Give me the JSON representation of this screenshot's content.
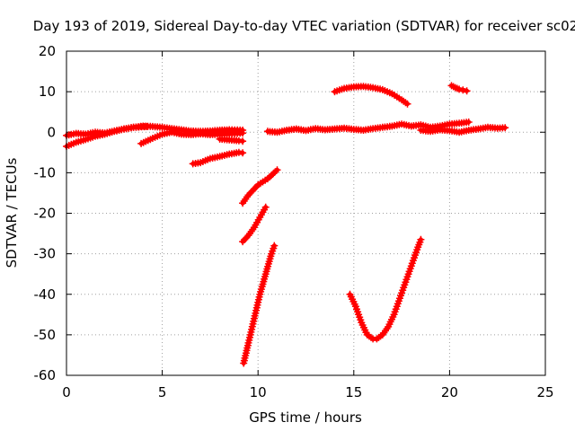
{
  "chart_data": {
    "type": "scatter",
    "title": "Day 193 of 2019, Sidereal Day-to-day VTEC variation (SDTVAR) for receiver sc02",
    "xlabel": "GPS time / hours",
    "ylabel": "SDTVAR / TECUs",
    "xlim": [
      0,
      25
    ],
    "ylim": [
      -60,
      20
    ],
    "xticks": [
      0,
      5,
      10,
      15,
      20,
      25
    ],
    "yticks": [
      -60,
      -50,
      -40,
      -30,
      -20,
      -10,
      0,
      10,
      20
    ],
    "grid": true,
    "marker": "plus",
    "color": "#ff0000",
    "segments": [
      {
        "x": [
          0.0,
          0.5,
          1.0,
          1.5,
          2.0,
          2.5
        ],
        "y": [
          -0.8,
          -0.3,
          -0.5,
          0.0,
          -0.2,
          0.3
        ]
      },
      {
        "x": [
          0.0,
          0.5,
          1.0,
          1.5,
          2.0,
          2.5,
          3.0,
          3.5,
          4.2
        ],
        "y": [
          -3.5,
          -2.5,
          -1.8,
          -1.0,
          -0.5,
          0.2,
          0.8,
          1.2,
          1.4
        ]
      },
      {
        "x": [
          2.5,
          3.0,
          3.5,
          4.0,
          4.5,
          5.0,
          5.5,
          6.0,
          6.5,
          7.0,
          7.5,
          8.0,
          8.5,
          9.2
        ],
        "y": [
          0.3,
          0.8,
          1.2,
          1.5,
          1.4,
          1.2,
          0.9,
          0.6,
          0.3,
          0.2,
          0.3,
          0.5,
          0.6,
          0.5
        ]
      },
      {
        "x": [
          3.9,
          4.5,
          5.0,
          5.5,
          6.0,
          6.5,
          7.0,
          7.5,
          8.0,
          8.5,
          9.2
        ],
        "y": [
          -2.8,
          -1.5,
          -0.5,
          0.0,
          -0.5,
          -0.6,
          -0.4,
          -0.6,
          -0.5,
          -0.4,
          -0.2
        ]
      },
      {
        "x": [
          8.0,
          8.5,
          9.0,
          9.2
        ],
        "y": [
          -1.7,
          -1.9,
          -2.1,
          -2.2
        ]
      },
      {
        "x": [
          6.6,
          7.0,
          7.5,
          8.0,
          8.5,
          9.0,
          9.2
        ],
        "y": [
          -7.8,
          -7.5,
          -6.5,
          -6.0,
          -5.4,
          -5.0,
          -5.1
        ]
      },
      {
        "x": [
          9.2,
          9.5,
          10.0,
          10.5,
          11.0
        ],
        "y": [
          -17.5,
          -15.5,
          -13.0,
          -11.5,
          -9.3
        ]
      },
      {
        "x": [
          9.2,
          9.5,
          9.8,
          10.1,
          10.4
        ],
        "y": [
          -27.0,
          -25.5,
          -23.5,
          -21.0,
          -18.5
        ]
      },
      {
        "x": [
          9.25,
          9.5,
          9.8,
          10.1,
          10.4,
          10.7,
          10.85
        ],
        "y": [
          -57.0,
          -52.0,
          -46.0,
          -40.0,
          -35.0,
          -30.0,
          -28.0
        ]
      },
      {
        "x": [
          10.5,
          11.0,
          11.5,
          12.0,
          12.5,
          13.0,
          13.5,
          14.0,
          14.5,
          15.0,
          15.5,
          16.0,
          16.5,
          17.0,
          17.5,
          18.0,
          18.5,
          19.0,
          19.5,
          20.0,
          20.5,
          21.0
        ],
        "y": [
          0.2,
          0.0,
          0.5,
          0.8,
          0.4,
          0.9,
          0.6,
          0.8,
          1.0,
          0.7,
          0.5,
          0.9,
          1.2,
          1.5,
          2.0,
          1.5,
          1.8,
          1.2,
          1.5,
          2.0,
          2.2,
          2.5
        ]
      },
      {
        "x": [
          18.5,
          19.0,
          19.5,
          20.0,
          20.5,
          21.0,
          21.5,
          22.0,
          22.5,
          22.9
        ],
        "y": [
          0.5,
          0.2,
          0.6,
          0.4,
          0.0,
          0.5,
          0.8,
          1.2,
          1.0,
          1.1
        ]
      },
      {
        "x": [
          14.0,
          14.5,
          15.0,
          15.5,
          16.0,
          16.5,
          17.0,
          17.5,
          17.8
        ],
        "y": [
          10.0,
          10.8,
          11.2,
          11.3,
          11.0,
          10.5,
          9.5,
          8.0,
          7.0
        ]
      },
      {
        "x": [
          20.1,
          20.3,
          20.5,
          20.7,
          20.9
        ],
        "y": [
          11.5,
          11.0,
          10.6,
          10.4,
          10.2
        ]
      },
      {
        "x": [
          14.8,
          15.1,
          15.4,
          15.7,
          16.0,
          16.2,
          16.5,
          16.8,
          17.1,
          17.4,
          17.7,
          18.0,
          18.3,
          18.5
        ],
        "y": [
          -40.0,
          -43.0,
          -47.0,
          -50.0,
          -51.0,
          -51.0,
          -50.0,
          -48.0,
          -45.0,
          -41.0,
          -37.0,
          -33.0,
          -29.0,
          -26.5
        ]
      }
    ]
  }
}
